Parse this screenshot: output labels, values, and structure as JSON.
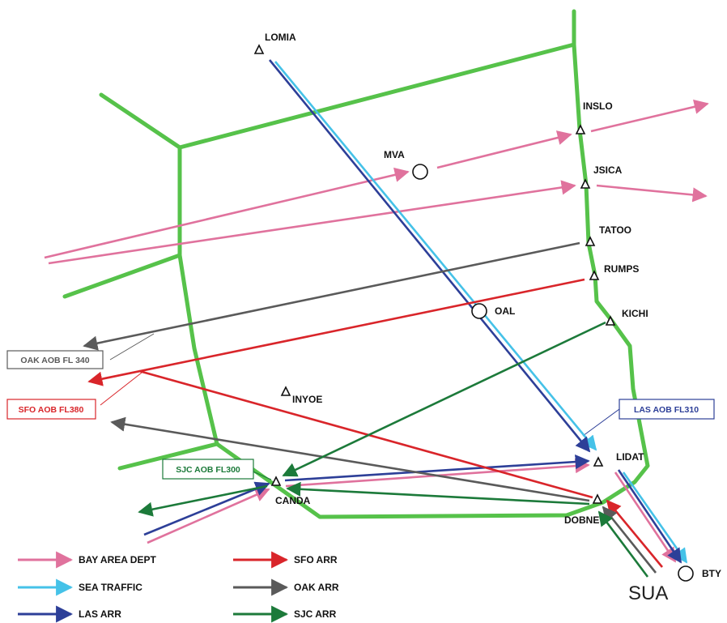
{
  "colors": {
    "boundary": "#56c24a",
    "bay_area_dept": "#e0729d",
    "sea_traffic": "#45c2e8",
    "las_arr": "#2d3f98",
    "sfo_arr": "#d9252a",
    "oak_arr": "#5a5a5a",
    "sjc_arr": "#1c7a3a"
  },
  "fixes": {
    "lomia": "LOMIA",
    "inslo": "INSLO",
    "mva": "MVA",
    "jsica": "JSICA",
    "tatoo": "TATOO",
    "rumps": "RUMPS",
    "oal": "OAL",
    "kichi": "KICHI",
    "inyoe": "INYOE",
    "lidat": "LIDAT",
    "canda": "CANDA",
    "dobne": "DOBNE",
    "bty": "BTY"
  },
  "boxes": {
    "oak_aob": "OAK AOB FL 340",
    "sfo_aob": "SFO AOB FL380",
    "las_aob": "LAS AOB FL310",
    "sjc_aob": "SJC AOB FL300"
  },
  "legend": {
    "bay_area_dept": "BAY AREA DEPT",
    "sea_traffic": "SEA TRAFFIC",
    "las_arr": "LAS ARR",
    "sfo_arr": "SFO ARR",
    "oak_arr": "OAK ARR",
    "sjc_arr": "SJC ARR"
  },
  "sua_label": "SUA"
}
